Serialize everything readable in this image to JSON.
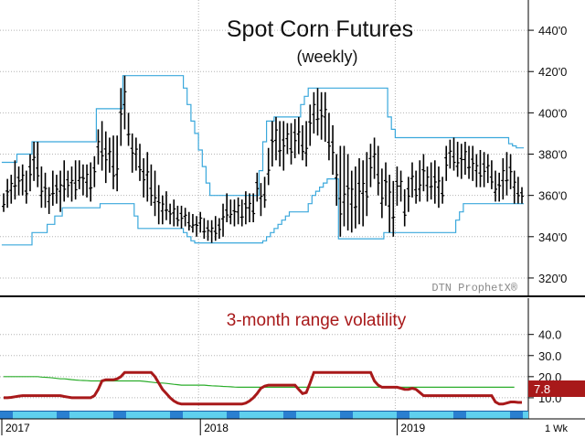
{
  "chart_data": [
    {
      "type": "ohlc",
      "title": "Spot Corn Futures",
      "subtitle": "(weekly)",
      "watermark": "DTN ProphetX®",
      "y_ticks": [
        "440'0",
        "420'0",
        "400'0",
        "380'0",
        "360'0",
        "340'0",
        "320'0"
      ],
      "ylim": [
        312,
        452
      ],
      "x_labels": [
        "2017",
        "2018",
        "2019"
      ],
      "x_timeframe": "1 Wk",
      "colors": {
        "bars": "#000000",
        "channel": "#3aa8dc",
        "grid": "#b4b4b4"
      },
      "series": [
        {
          "kind": "ohlc_weekly",
          "high": [
            361,
            368,
            370,
            377,
            374,
            375,
            372,
            380,
            386,
            386,
            374,
            371,
            364,
            372,
            370,
            372,
            377,
            372,
            374,
            377,
            377,
            375,
            375,
            376,
            379,
            392,
            396,
            391,
            388,
            389,
            389,
            412,
            418,
            400,
            390,
            388,
            385,
            378,
            381,
            375,
            372,
            365,
            360,
            362,
            356,
            358,
            355,
            355,
            354,
            352,
            351,
            350,
            352,
            349,
            348,
            348,
            350,
            349,
            356,
            361,
            358,
            358,
            359,
            358,
            362,
            361,
            361,
            371,
            366,
            369,
            383,
            396,
            398,
            396,
            396,
            395,
            395,
            397,
            398,
            394,
            396,
            404,
            410,
            412,
            410,
            410,
            400,
            394,
            380,
            384,
            384,
            380,
            372,
            374,
            378,
            377,
            381,
            385,
            388,
            384,
            373,
            376,
            370,
            367,
            374,
            372,
            363,
            369,
            376,
            372,
            377,
            380,
            374,
            376,
            377,
            374,
            369,
            384,
            387,
            388,
            386,
            385,
            386,
            384,
            384,
            380,
            382,
            381,
            380,
            377,
            372,
            371,
            378,
            381,
            380,
            372,
            369,
            364
          ],
          "low": [
            352,
            354,
            356,
            358,
            360,
            360,
            356,
            362,
            367,
            364,
            354,
            354,
            351,
            355,
            356,
            352,
            357,
            359,
            357,
            358,
            363,
            360,
            359,
            357,
            364,
            375,
            372,
            366,
            371,
            363,
            362,
            384,
            392,
            384,
            371,
            372,
            367,
            359,
            357,
            355,
            350,
            346,
            346,
            348,
            346,
            345,
            345,
            344,
            345,
            343,
            342,
            340,
            342,
            339,
            338,
            337,
            338,
            339,
            340,
            347,
            346,
            345,
            346,
            345,
            346,
            347,
            347,
            357,
            350,
            354,
            365,
            374,
            377,
            374,
            372,
            380,
            375,
            378,
            380,
            377,
            374,
            384,
            390,
            389,
            387,
            386,
            377,
            370,
            355,
            340,
            345,
            343,
            342,
            344,
            346,
            345,
            350,
            364,
            368,
            360,
            349,
            355,
            342,
            340,
            355,
            357,
            345,
            352,
            359,
            356,
            357,
            362,
            357,
            358,
            356,
            354,
            356,
            367,
            373,
            372,
            369,
            368,
            370,
            368,
            367,
            364,
            364,
            364,
            366,
            363,
            357,
            357,
            358,
            360,
            363,
            356,
            356,
            356
          ],
          "bar_count": 138
        },
        {
          "kind": "channel_upper",
          "values": [
            376,
            376,
            376,
            376,
            380,
            380,
            380,
            380,
            386,
            386,
            386,
            386,
            386,
            386,
            386,
            386,
            386,
            386,
            386,
            386,
            386,
            386,
            386,
            386,
            386,
            402,
            402,
            402,
            402,
            402,
            402,
            402,
            418,
            418,
            418,
            418,
            418,
            418,
            418,
            418,
            418,
            418,
            418,
            418,
            418,
            418,
            418,
            418,
            412,
            404,
            396,
            390,
            382,
            374,
            366,
            360,
            360,
            360,
            360,
            360,
            360,
            360,
            360,
            360,
            360,
            360,
            360,
            360,
            372,
            386,
            396,
            396,
            398,
            398,
            398,
            398,
            398,
            398,
            398,
            404,
            408,
            412,
            412,
            412,
            412,
            412,
            412,
            412,
            412,
            412,
            412,
            412,
            412,
            412,
            412,
            412,
            412,
            412,
            412,
            412,
            412,
            412,
            398,
            392,
            388,
            388,
            388,
            388,
            388,
            388,
            388,
            388,
            388,
            388,
            388,
            388,
            388,
            388,
            388,
            388,
            388,
            388,
            388,
            388,
            388,
            388,
            388,
            388,
            388,
            388,
            388,
            388,
            388,
            388,
            385,
            384,
            383,
            383
          ]
        },
        {
          "kind": "channel_lower",
          "values": [
            336,
            336,
            336,
            336,
            336,
            336,
            336,
            336,
            342,
            342,
            342,
            342,
            346,
            346,
            350,
            350,
            354,
            354,
            354,
            354,
            354,
            354,
            354,
            354,
            354,
            354,
            356,
            356,
            356,
            356,
            356,
            356,
            356,
            356,
            356,
            350,
            344,
            344,
            344,
            344,
            344,
            344,
            344,
            344,
            344,
            344,
            344,
            344,
            342,
            340,
            338,
            337,
            337,
            337,
            337,
            337,
            337,
            337,
            337,
            337,
            337,
            337,
            337,
            337,
            337,
            337,
            337,
            337,
            337,
            338,
            340,
            342,
            344,
            346,
            348,
            350,
            352,
            352,
            352,
            352,
            352,
            356,
            360,
            362,
            364,
            366,
            368,
            368,
            368,
            339,
            339,
            339,
            339,
            339,
            339,
            339,
            339,
            339,
            339,
            339,
            339,
            342,
            342,
            342,
            342,
            342,
            342,
            342,
            342,
            342,
            342,
            342,
            342,
            342,
            342,
            342,
            342,
            342,
            342,
            342,
            348,
            352,
            356,
            356,
            356,
            356,
            356,
            356,
            356,
            356,
            356,
            356,
            356,
            356,
            356,
            356,
            356,
            356
          ]
        }
      ]
    },
    {
      "type": "line",
      "title": "3-month range volatility",
      "y_ticks": [
        "40.0",
        "30.0",
        "20.0",
        "10.0"
      ],
      "ylim": [
        0,
        52
      ],
      "last_value_label": "7.8",
      "colors": {
        "volatility": "#a8191a",
        "average": "#2bad2b",
        "label_bg": "#a8191a"
      },
      "series": [
        {
          "name": "",
          "values": [
            10,
            10,
            10.2,
            10.5,
            10.8,
            11,
            11,
            11,
            11,
            11,
            11,
            11,
            11,
            11,
            11,
            11,
            10.6,
            10.3,
            10,
            10,
            10,
            10,
            10,
            10,
            11,
            14,
            18,
            18.5,
            18.5,
            18.5,
            19,
            20,
            22,
            22,
            22,
            22,
            22,
            22,
            22,
            22,
            20,
            17,
            14,
            12,
            10,
            8.5,
            7.5,
            7,
            7,
            7,
            7,
            7,
            7,
            7,
            7,
            7,
            7,
            7,
            7,
            7,
            7,
            7,
            7,
            7,
            7.5,
            8.5,
            10,
            12,
            14.5,
            15.5,
            16,
            16,
            16,
            16,
            16,
            16,
            16,
            16,
            14,
            12,
            12.5,
            17,
            22,
            22,
            22,
            22,
            22,
            22,
            22,
            22,
            22,
            22,
            22,
            22,
            22,
            22,
            22,
            22,
            18,
            16,
            15,
            15,
            15,
            15,
            15,
            14.5,
            14,
            14,
            14.5,
            14,
            12.5,
            11,
            11,
            11,
            11,
            11,
            11,
            11,
            11,
            11,
            11,
            11,
            11,
            11,
            11,
            11,
            11,
            11,
            11,
            11,
            8,
            7,
            7,
            7.5,
            8,
            8,
            7.8,
            7.8
          ]
        },
        {
          "name": "",
          "values": [
            20,
            20,
            20,
            20,
            20,
            20,
            20,
            20,
            20,
            20,
            19.8,
            19.7,
            19.6,
            19.4,
            19.2,
            19,
            19,
            18.8,
            18.6,
            18.4,
            18.3,
            18.2,
            18.1,
            18,
            18,
            18,
            18,
            18,
            18,
            18,
            18,
            18,
            18,
            18,
            18,
            18,
            18,
            17.8,
            17.6,
            17.4,
            17.2,
            17,
            17,
            16.8,
            16.6,
            16.4,
            16.2,
            16,
            16,
            16,
            16,
            16,
            16,
            16,
            15.8,
            15.7,
            15.6,
            15.5,
            15.4,
            15.3,
            15.2,
            15.1,
            15,
            15,
            15,
            15,
            15,
            15,
            15,
            15,
            15,
            15,
            15,
            15,
            15,
            15,
            15,
            15,
            15,
            15,
            15,
            15,
            15,
            15,
            15,
            15,
            15,
            15,
            15,
            15,
            15,
            15,
            15,
            15,
            15,
            15,
            15,
            15,
            15,
            15,
            15,
            15,
            15,
            15,
            15,
            15,
            15,
            15,
            15,
            15,
            15,
            15,
            15,
            15,
            15,
            15,
            15,
            15,
            15,
            15,
            15,
            15,
            15,
            15,
            15,
            15,
            15,
            15,
            15,
            15,
            15,
            15,
            15,
            15,
            15,
            15
          ]
        }
      ]
    }
  ]
}
